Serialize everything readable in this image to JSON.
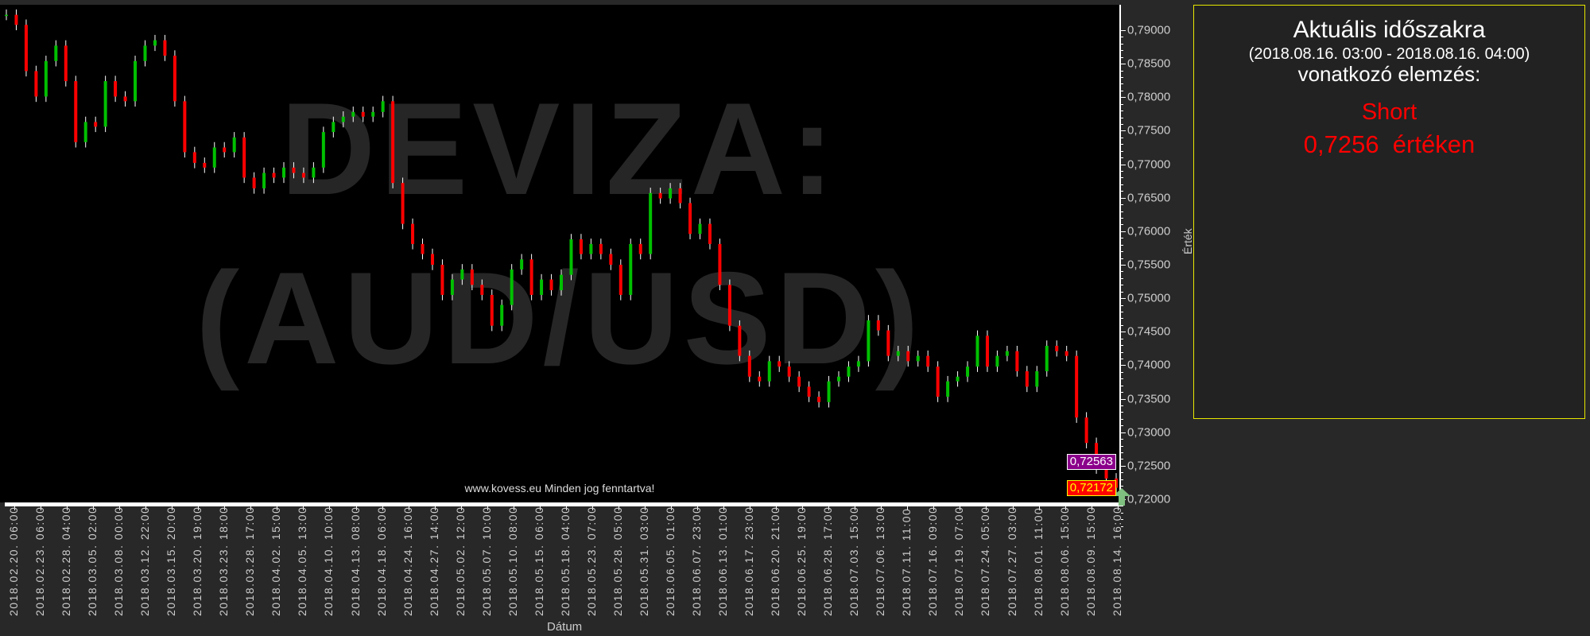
{
  "chart_data": {
    "type": "candlestick",
    "title": "",
    "watermark": [
      "DEVIZA:",
      "(AUD/USD)"
    ],
    "xlabel": "Dátum",
    "ylabel": "Érték",
    "ylim": [
      0.7195,
      0.7935
    ],
    "yticks": [
      "0,72000",
      "0,72500",
      "0,73000",
      "0,73500",
      "0,74000",
      "0,74500",
      "0,75000",
      "0,75500",
      "0,76000",
      "0,76500",
      "0,77000",
      "0,77500",
      "0,78000",
      "0,78500",
      "0,79000"
    ],
    "ytick_values": [
      0.72,
      0.725,
      0.73,
      0.735,
      0.74,
      0.745,
      0.75,
      0.755,
      0.76,
      0.765,
      0.77,
      0.775,
      0.78,
      0.785,
      0.79
    ],
    "xticks": [
      "2018.02.20. 06:00",
      "2018.02.23. 06:00",
      "2018.02.28. 04:00",
      "2018.03.05. 02:00",
      "2018.03.08. 00:00",
      "2018.03.12. 22:00",
      "2018.03.15. 20:00",
      "2018.03.20. 19:00",
      "2018.03.23. 18:00",
      "2018.03.28. 17:00",
      "2018.04.02. 15:00",
      "2018.04.05. 13:00",
      "2018.04.10. 10:00",
      "2018.04.13. 08:00",
      "2018.04.18. 06:00",
      "2018.04.24. 16:00",
      "2018.04.27. 14:00",
      "2018.05.02. 12:00",
      "2018.05.07. 10:00",
      "2018.05.10. 08:00",
      "2018.05.15. 06:00",
      "2018.05.18. 04:00",
      "2018.05.23. 07:00",
      "2018.05.28. 05:00",
      "2018.05.31. 03:00",
      "2018.06.05. 01:00",
      "2018.06.07. 23:00",
      "2018.06.13. 01:00",
      "2018.06.17. 23:00",
      "2018.06.20. 21:00",
      "2018.06.25. 19:00",
      "2018.06.28. 17:00",
      "2018.07.03. 15:00",
      "2018.07.06. 13:00",
      "2018.07.11. 11:00",
      "2018.07.16. 09:00",
      "2018.07.19. 07:00",
      "2018.07.24. 05:00",
      "2018.07.27. 03:00",
      "2018.08.01. 11:00",
      "2018.08.06. 15:00",
      "2018.08.09. 15:00",
      "2018.08.14. 16:00"
    ],
    "close": [
      0.7923,
      0.7908,
      0.7839,
      0.7801,
      0.7854,
      0.7877,
      0.7824,
      0.7733,
      0.7763,
      0.7756,
      0.7824,
      0.7801,
      0.7794,
      0.7854,
      0.7877,
      0.7885,
      0.7862,
      0.7794,
      0.7718,
      0.7702,
      0.7695,
      0.7725,
      0.7718,
      0.774,
      0.768,
      0.7664,
      0.7687,
      0.768,
      0.7695,
      0.7687,
      0.768,
      0.7695,
      0.7748,
      0.7763,
      0.7771,
      0.7778,
      0.7771,
      0.7778,
      0.7794,
      0.7672,
      0.7611,
      0.7581,
      0.7566,
      0.755,
      0.7505,
      0.7528,
      0.7543,
      0.752,
      0.7505,
      0.7459,
      0.749,
      0.7543,
      0.7558,
      0.7505,
      0.7528,
      0.7512,
      0.7535,
      0.7588,
      0.7566,
      0.7581,
      0.7566,
      0.755,
      0.7505,
      0.7581,
      0.7566,
      0.7657,
      0.7649,
      0.7664,
      0.7642,
      0.7596,
      0.7611,
      0.7581,
      0.752,
      0.7459,
      0.7414,
      0.7383,
      0.7376,
      0.7406,
      0.7398,
      0.7383,
      0.7368,
      0.7353,
      0.7345,
      0.7376,
      0.7383,
      0.7398,
      0.7406,
      0.7467,
      0.7452,
      0.7414,
      0.7421,
      0.7406,
      0.7414,
      0.7398,
      0.7353,
      0.7376,
      0.7383,
      0.7398,
      0.7444,
      0.7398,
      0.7414,
      0.7421,
      0.7391,
      0.7368,
      0.7391,
      0.7429,
      0.7421,
      0.7414,
      0.7322,
      0.7284,
      0.7246,
      0.7231,
      0.72172
    ],
    "markers": [
      {
        "label": "0,72563",
        "value": 0.72563,
        "bg": "#8b008b",
        "fg": "#ffffff",
        "border": "#ffffff"
      },
      {
        "label": "0,72172",
        "value": 0.72172,
        "bg": "#ff0000",
        "fg": "#ffff00",
        "border": "#ffff00"
      }
    ],
    "colors": {
      "up": "#00c000",
      "down": "#ff0000",
      "background": "#000000"
    },
    "grid": false
  },
  "footer": "www.kovess.eu Minden jog fenntartva!",
  "panel": {
    "title": "Aktuális időszakra",
    "period": "(2018.08.16. 03:00 - 2018.08.16. 04:00)",
    "subtitle": "vonatkozó elemzés:",
    "signal": "Short",
    "value_text": "0,7256  értéken"
  }
}
